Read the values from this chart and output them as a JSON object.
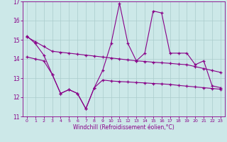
{
  "title": "",
  "xlabel": "Windchill (Refroidissement éolien,°C)",
  "ylabel": "",
  "xlim": [
    -0.5,
    23.5
  ],
  "ylim": [
    11,
    17
  ],
  "yticks": [
    11,
    12,
    13,
    14,
    15,
    16,
    17
  ],
  "xticks": [
    0,
    1,
    2,
    3,
    4,
    5,
    6,
    7,
    8,
    9,
    10,
    11,
    12,
    13,
    14,
    15,
    16,
    17,
    18,
    19,
    20,
    21,
    22,
    23
  ],
  "background_color": "#cce8e8",
  "grid_color": "#aacccc",
  "line_color": "#880088",
  "series1": [
    15.2,
    14.8,
    14.2,
    13.2,
    12.2,
    12.4,
    12.2,
    11.4,
    12.5,
    13.4,
    14.8,
    16.9,
    14.8,
    13.9,
    14.3,
    16.5,
    16.4,
    14.3,
    14.3,
    14.3,
    13.7,
    13.9,
    12.6,
    12.5
  ],
  "series2": [
    15.15,
    14.9,
    14.65,
    14.4,
    14.35,
    14.3,
    14.25,
    14.2,
    14.15,
    14.1,
    14.05,
    14.0,
    13.95,
    13.9,
    13.87,
    13.83,
    13.8,
    13.77,
    13.73,
    13.7,
    13.6,
    13.5,
    13.4,
    13.3
  ],
  "series3": [
    14.1,
    14.0,
    13.9,
    13.2,
    12.2,
    12.4,
    12.2,
    11.4,
    12.5,
    12.9,
    12.85,
    12.82,
    12.8,
    12.77,
    12.75,
    12.72,
    12.7,
    12.67,
    12.62,
    12.58,
    12.54,
    12.5,
    12.46,
    12.42
  ]
}
